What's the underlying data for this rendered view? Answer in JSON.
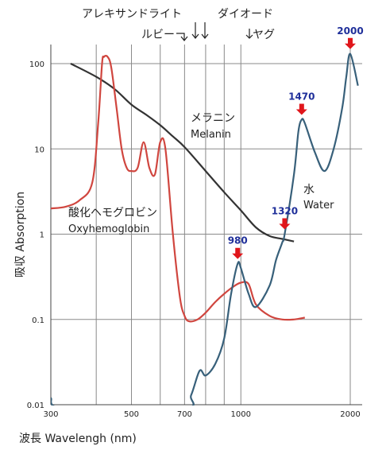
{
  "chart_data": {
    "type": "line",
    "xlabel": "波長 Wavelengh (nm)",
    "ylabel": "吸収 Absorption",
    "xscale": "log",
    "yscale": "log",
    "xlim": [
      300,
      2000
    ],
    "ylim": [
      0.01,
      100
    ],
    "xticks": [
      300,
      500,
      700,
      1000,
      2000
    ],
    "xtick_labels": [
      "300",
      "500",
      "700",
      "1000",
      "2000"
    ],
    "yticks": [
      0.01,
      0.1,
      1,
      10,
      100
    ],
    "ytick_labels": [
      "0.01",
      "0.1",
      "1",
      "10",
      "100"
    ],
    "grid_x": [
      400,
      500,
      600,
      700,
      800,
      900,
      1000,
      2000
    ],
    "grid_y": [
      0.01,
      0.1,
      1,
      10,
      100
    ],
    "series": [
      {
        "name": "メラニン Melanin",
        "label_jp": "メラニン",
        "label_en": "Melanin",
        "color": "#333333",
        "x": [
          340,
          400,
          450,
          500,
          550,
          600,
          650,
          700,
          800,
          900,
          1000,
          1100,
          1200,
          1300,
          1400
        ],
        "y": [
          100,
          70,
          50,
          33,
          25,
          19,
          14,
          10.5,
          5.5,
          3.1,
          1.9,
          1.2,
          0.95,
          0.88,
          0.82
        ]
      },
      {
        "name": "酸化ヘモグロビン Oxyhemoglobin",
        "label_jp": "酸化ヘモグロビン",
        "label_en": "Oxyhemoglobin",
        "color": "#d0463f",
        "x": [
          300,
          330,
          360,
          390,
          405,
          415,
          420,
          430,
          440,
          455,
          470,
          485,
          500,
          520,
          540,
          560,
          580,
          600,
          620,
          650,
          680,
          700,
          720,
          760,
          800,
          850,
          900,
          950,
          1000,
          1050,
          1100,
          1200,
          1300,
          1400,
          1500
        ],
        "y": [
          2,
          2.1,
          2.5,
          4,
          20,
          100,
          120,
          120,
          90,
          30,
          10,
          6,
          5.5,
          6,
          12,
          6,
          5,
          12,
          10,
          1.0,
          0.18,
          0.11,
          0.095,
          0.1,
          0.12,
          0.16,
          0.2,
          0.24,
          0.27,
          0.26,
          0.15,
          0.11,
          0.1,
          0.1,
          0.105
        ]
      },
      {
        "name": "水 Water",
        "label_jp": "水",
        "label_en": "Water",
        "color": "#38607a",
        "x": [
          300,
          330,
          690,
          730,
          770,
          800,
          850,
          900,
          940,
          980,
          1000,
          1050,
          1100,
          1200,
          1250,
          1300,
          1320,
          1400,
          1440,
          1470,
          1500,
          1600,
          1700,
          1800,
          1900,
          1950,
          2000,
          2100
        ],
        "y": [
          0.012,
          0.009,
          0.009,
          0.013,
          0.025,
          0.022,
          0.03,
          0.06,
          0.2,
          0.45,
          0.4,
          0.2,
          0.14,
          0.25,
          0.5,
          0.8,
          1.0,
          5,
          16,
          22,
          20,
          9,
          5.5,
          10,
          30,
          70,
          130,
          55
        ]
      }
    ],
    "peaks": [
      {
        "label": "980",
        "x": 980,
        "y": 0.45
      },
      {
        "label": "1320",
        "x": 1320,
        "y": 1.0
      },
      {
        "label": "1470",
        "x": 1470,
        "y": 22
      },
      {
        "label": "2000",
        "x": 2000,
        "y": 130
      }
    ],
    "lasers": [
      {
        "label": "アレキサンドライト",
        "x": 755
      },
      {
        "label": "ルビー",
        "x": 694
      },
      {
        "label": "ダイオード",
        "x": 810
      },
      {
        "label": "ヤグ",
        "x": 1064
      }
    ],
    "marker_color": "#e0161b",
    "peak_label_color": "#1f2f9a"
  }
}
